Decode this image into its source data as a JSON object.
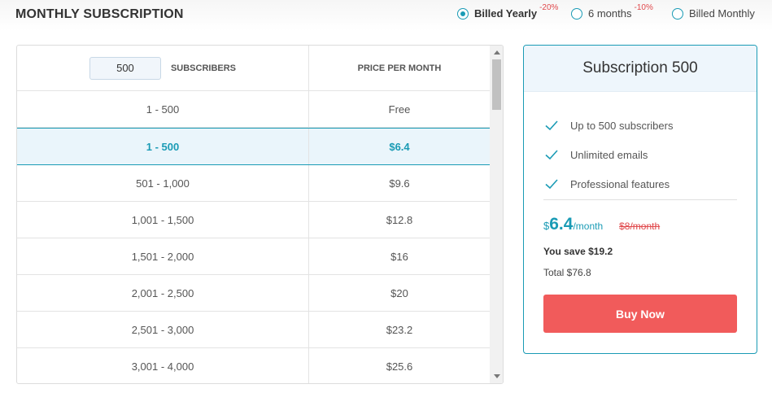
{
  "page": {
    "title": "MONTHLY SUBSCRIPTION"
  },
  "billing": {
    "options": [
      {
        "label": "Billed Yearly",
        "discount": "-20%",
        "selected": true
      },
      {
        "label": "6 months",
        "discount": "-10%",
        "selected": false
      },
      {
        "label": "Billed Monthly",
        "discount": "",
        "selected": false
      }
    ]
  },
  "table": {
    "subscribers_value": "500",
    "subscribers_header": "SUBSCRIBERS",
    "price_header": "PRICE PER MONTH",
    "rows": [
      {
        "range": "1 - 500",
        "price": "Free",
        "selected": false
      },
      {
        "range": "1 - 500",
        "price": "$6.4",
        "selected": true
      },
      {
        "range": "501 - 1,000",
        "price": "$9.6",
        "selected": false
      },
      {
        "range": "1,001 - 1,500",
        "price": "$12.8",
        "selected": false
      },
      {
        "range": "1,501 - 2,000",
        "price": "$16",
        "selected": false
      },
      {
        "range": "2,001 - 2,500",
        "price": "$20",
        "selected": false
      },
      {
        "range": "2,501 - 3,000",
        "price": "$23.2",
        "selected": false
      },
      {
        "range": "3,001 - 4,000",
        "price": "$25.6",
        "selected": false
      }
    ]
  },
  "plan": {
    "title": "Subscription 500",
    "features": [
      "Up to 500 subscribers",
      "Unlimited emails",
      "Professional features"
    ],
    "currency": "$",
    "amount": "6.4",
    "per": "/month",
    "old_price": "$8/month",
    "save_text": "You save $19.2",
    "total_text": "Total $76.8",
    "buy_label": "Buy Now"
  },
  "colors": {
    "accent": "#1a9bb5",
    "buy": "#f15b5b",
    "discount": "#e0484b",
    "selected_row": "#eaf5fb"
  },
  "icons": {
    "feature": "check-icon",
    "scroll_up": "triangle-up-icon",
    "scroll_down": "triangle-down-icon"
  }
}
